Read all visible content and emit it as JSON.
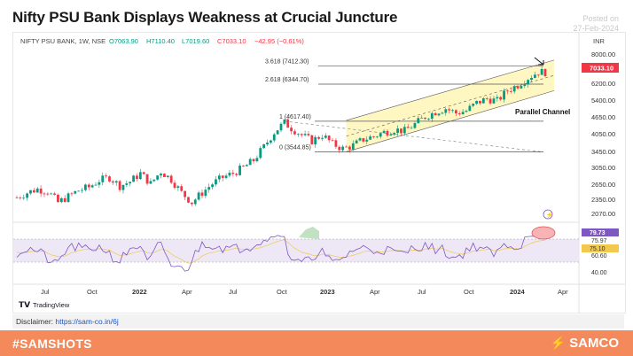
{
  "header": {
    "title": "Nifty PSU Bank Displays Weakness at Crucial Juncture",
    "posted_label": "Posted on",
    "posted_date": "27-Feb-2024"
  },
  "chart_data": {
    "type": "candlestick",
    "symbol_info": "NIFTY PSU BANK, 1W, NSE",
    "ohlc_text": {
      "o": "O7063.90",
      "h": "H7110.40",
      "l": "L7019.60",
      "c": "C7033.10",
      "change": "−42.95 (−0.61%)"
    },
    "currency": "INR",
    "last_price": "7033.10",
    "y_ticks": [
      "8000.00",
      "6200.00",
      "5400.00",
      "4650.00",
      "4050.00",
      "3450.00",
      "3050.00",
      "2650.00",
      "2350.00",
      "2070.00"
    ],
    "x_ticks": [
      {
        "label": "Jul",
        "bold": false
      },
      {
        "label": "Oct",
        "bold": false
      },
      {
        "label": "2022",
        "bold": true
      },
      {
        "label": "Apr",
        "bold": false
      },
      {
        "label": "Jul",
        "bold": false
      },
      {
        "label": "Oct",
        "bold": false
      },
      {
        "label": "2023",
        "bold": true
      },
      {
        "label": "Apr",
        "bold": false
      },
      {
        "label": "Jul",
        "bold": false
      },
      {
        "label": "Oct",
        "bold": false
      },
      {
        "label": "2024",
        "bold": true
      },
      {
        "label": "Apr",
        "bold": false
      }
    ],
    "fib_levels": [
      {
        "label": "3.618 (7412.30)",
        "value": 7412.3
      },
      {
        "label": "2.618 (6344.70)",
        "value": 6344.7
      },
      {
        "label": "1 (4617.40)",
        "value": 4617.4
      },
      {
        "label": "0 (3544.85)",
        "value": 3544.85
      }
    ],
    "annotation": "Parallel Channel",
    "rsi": {
      "ticks": [
        "75.97",
        "60.60",
        "40.00"
      ],
      "value_label": "79.73",
      "signal_label": "75.10",
      "upper_band": 70,
      "lower_band": 30
    },
    "price_path": [
      [
        0,
        2400
      ],
      [
        3,
        2500
      ],
      [
        6,
        2580
      ],
      [
        9,
        2530
      ],
      [
        12,
        2300
      ],
      [
        15,
        2420
      ],
      [
        18,
        2550
      ],
      [
        21,
        2620
      ],
      [
        24,
        2780
      ],
      [
        27,
        2850
      ],
      [
        30,
        2650
      ],
      [
        33,
        2750
      ],
      [
        36,
        2950
      ],
      [
        39,
        2700
      ],
      [
        42,
        3000
      ],
      [
        45,
        2800
      ],
      [
        48,
        2500
      ],
      [
        51,
        2300
      ],
      [
        54,
        2500
      ],
      [
        57,
        2700
      ],
      [
        60,
        2850
      ],
      [
        63,
        2950
      ],
      [
        66,
        3100
      ],
      [
        69,
        3300
      ],
      [
        72,
        3700
      ],
      [
        75,
        4200
      ],
      [
        78,
        4560
      ],
      [
        80,
        4350
      ],
      [
        83,
        4100
      ],
      [
        86,
        3900
      ],
      [
        89,
        4100
      ],
      [
        92,
        3800
      ],
      [
        95,
        3650
      ],
      [
        98,
        3750
      ],
      [
        101,
        3950
      ],
      [
        104,
        4050
      ],
      [
        107,
        4200
      ],
      [
        110,
        4300
      ],
      [
        113,
        4250
      ],
      [
        116,
        4500
      ],
      [
        119,
        4800
      ],
      [
        122,
        5000
      ],
      [
        125,
        5150
      ],
      [
        128,
        4950
      ],
      [
        131,
        5050
      ],
      [
        134,
        5400
      ],
      [
        137,
        5600
      ],
      [
        140,
        5500
      ],
      [
        143,
        6000
      ],
      [
        146,
        6300
      ],
      [
        149,
        6700
      ],
      [
        152,
        7050
      ],
      [
        154,
        7033
      ]
    ]
  },
  "disclaimer": {
    "label": "Disclaimer:",
    "link": "https://sam-co.in/6j"
  },
  "footer": {
    "hashtag": "#SAMSHOTS",
    "brand": "SAMCO"
  },
  "tradingview": "TradingView",
  "colors": {
    "up": "#089981",
    "down": "#f23645",
    "fib": "#555555",
    "channel_fill": "#fff7c2",
    "rsi_line": "#7e57c2",
    "rsi_band": "#ede7f6",
    "footer": "#f48a5c"
  }
}
